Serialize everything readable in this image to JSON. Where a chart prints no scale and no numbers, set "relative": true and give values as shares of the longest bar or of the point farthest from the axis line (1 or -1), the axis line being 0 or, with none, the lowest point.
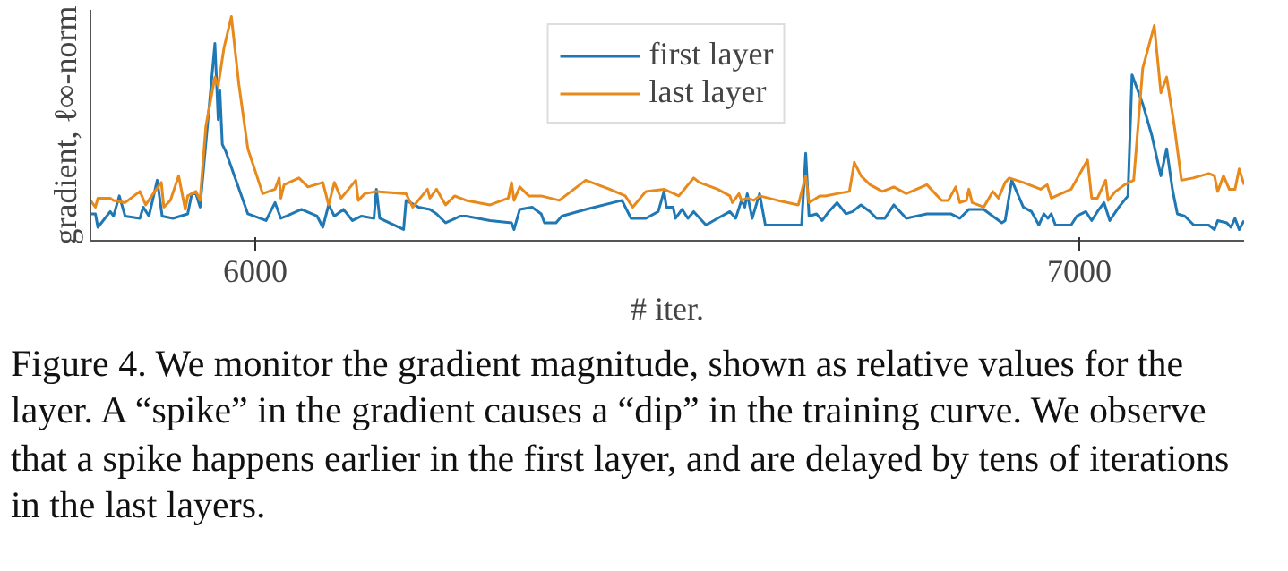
{
  "chart_data": {
    "type": "line",
    "relative": true,
    "ylabel": "gradient, ℓ∞-norm",
    "xlabel": "# iter.",
    "xlim": [
      5800,
      7200
    ],
    "xticks": [
      6000,
      7000
    ],
    "grid": false,
    "legend": "top",
    "annotations": [
      "Figure 4.  We monitor the gradient magnitude, shown as relative values for the layer. A “spike” in the gradient causes a “dip” in the training curve. We observe that a spike happens earlier in the first layer, and are delayed by tens of iterations in the last layers."
    ],
    "series": [
      {
        "name": "first layer",
        "color": "#1f77b4",
        "x": [
          5800,
          5806,
          5809,
          5824,
          5828,
          5835,
          5842,
          5860,
          5864,
          5871,
          5881,
          5887,
          5900,
          5918,
          5923,
          5928,
          5933,
          5951,
          5955,
          5957,
          5960,
          5964,
          5991,
          6013,
          6024,
          6031,
          6038,
          6056,
          6075,
          6082,
          6089,
          6096,
          6107,
          6118,
          6129,
          6144,
          6147,
          6151,
          6180,
          6183,
          6198,
          6212,
          6220,
          6231,
          6249,
          6256,
          6285,
          6311,
          6314,
          6321,
          6336,
          6347,
          6351,
          6365,
          6372,
          6401,
          6445,
          6456,
          6474,
          6489,
          6496,
          6499,
          6507,
          6510,
          6518,
          6525,
          6532,
          6547,
          6561,
          6576,
          6583,
          6590,
          6594,
          6597,
          6603,
          6612,
          6619,
          6648,
          6663,
          6668,
          6672,
          6681,
          6688,
          6696,
          6706,
          6717,
          6725,
          6735,
          6746,
          6754,
          6764,
          6775,
          6790,
          6815,
          6844,
          6855,
          6866,
          6884,
          6895,
          6906,
          6910,
          6918,
          6932,
          6942,
          6951,
          6957,
          6962,
          6966,
          6971,
          6990,
          6997,
          7008,
          7015,
          7022,
          7030,
          7037,
          7048,
          7059,
          7064,
          7077,
          7088,
          7099,
          7106,
          7113,
          7119,
          7128,
          7139,
          7157,
          7164,
          7168,
          7179,
          7184,
          7189,
          7194,
          7200
        ],
        "values": [
          0.12,
          0.12,
          0.06,
          0.13,
          0.11,
          0.2,
          0.11,
          0.1,
          0.15,
          0.11,
          0.27,
          0.11,
          0.1,
          0.12,
          0.21,
          0.21,
          0.15,
          0.88,
          0.54,
          0.67,
          0.43,
          0.4,
          0.12,
          0.09,
          0.17,
          0.1,
          0.11,
          0.14,
          0.11,
          0.06,
          0.16,
          0.11,
          0.14,
          0.09,
          0.11,
          0.1,
          0.23,
          0.1,
          0.05,
          0.18,
          0.15,
          0.14,
          0.12,
          0.08,
          0.11,
          0.11,
          0.09,
          0.08,
          0.05,
          0.14,
          0.15,
          0.12,
          0.08,
          0.08,
          0.11,
          0.14,
          0.18,
          0.1,
          0.1,
          0.13,
          0.22,
          0.15,
          0.15,
          0.1,
          0.14,
          0.1,
          0.13,
          0.07,
          0.1,
          0.13,
          0.1,
          0.18,
          0.15,
          0.21,
          0.1,
          0.21,
          0.07,
          0.07,
          0.07,
          0.39,
          0.11,
          0.12,
          0.09,
          0.13,
          0.17,
          0.12,
          0.13,
          0.16,
          0.13,
          0.1,
          0.1,
          0.16,
          0.1,
          0.12,
          0.12,
          0.1,
          0.14,
          0.14,
          0.11,
          0.08,
          0.09,
          0.27,
          0.15,
          0.13,
          0.07,
          0.12,
          0.1,
          0.12,
          0.07,
          0.07,
          0.11,
          0.13,
          0.09,
          0.13,
          0.17,
          0.09,
          0.15,
          0.2,
          0.74,
          0.61,
          0.47,
          0.29,
          0.41,
          0.23,
          0.12,
          0.11,
          0.07,
          0.07,
          0.05,
          0.09,
          0.08,
          0.06,
          0.1,
          0.05,
          0.09
        ]
      },
      {
        "name": "last layer",
        "color": "#e8891c",
        "x": [
          5800,
          5806,
          5809,
          5824,
          5828,
          5842,
          5860,
          5867,
          5878,
          5886,
          5889,
          5897,
          5907,
          5915,
          5918,
          5928,
          5933,
          5940,
          5951,
          5955,
          5962,
          5971,
          5980,
          5991,
          6009,
          6024,
          6029,
          6031,
          6035,
          6053,
          6064,
          6082,
          6089,
          6096,
          6104,
          6111,
          6122,
          6125,
          6133,
          6147,
          6183,
          6191,
          6209,
          6212,
          6220,
          6231,
          6242,
          6256,
          6285,
          6307,
          6311,
          6314,
          6321,
          6332,
          6347,
          6369,
          6401,
          6430,
          6449,
          6458,
          6474,
          6496,
          6514,
          6532,
          6539,
          6561,
          6576,
          6579,
          6587,
          6590,
          6597,
          6605,
          6612,
          6634,
          6659,
          6668,
          6672,
          6685,
          6692,
          6706,
          6721,
          6727,
          6735,
          6746,
          6761,
          6775,
          6790,
          6815,
          6833,
          6841,
          6850,
          6855,
          6863,
          6866,
          6870,
          6884,
          6895,
          6902,
          6910,
          6915,
          6932,
          6953,
          6961,
          6966,
          6990,
          7010,
          7015,
          7022,
          7032,
          7035,
          7044,
          7055,
          7066,
          7077,
          7091,
          7099,
          7106,
          7115,
          7124,
          7138,
          7157,
          7164,
          7168,
          7175,
          7182,
          7189,
          7194,
          7200
        ],
        "values": [
          0.18,
          0.15,
          0.19,
          0.19,
          0.18,
          0.17,
          0.22,
          0.16,
          0.22,
          0.26,
          0.15,
          0.18,
          0.29,
          0.14,
          0.2,
          0.22,
          0.18,
          0.51,
          0.73,
          0.69,
          0.86,
          1,
          0.7,
          0.41,
          0.21,
          0.23,
          0.28,
          0.19,
          0.25,
          0.28,
          0.24,
          0.26,
          0.16,
          0.26,
          0.19,
          0.22,
          0.27,
          0.18,
          0.21,
          0.22,
          0.21,
          0.15,
          0.23,
          0.19,
          0.23,
          0.16,
          0.2,
          0.18,
          0.16,
          0.19,
          0.26,
          0.18,
          0.24,
          0.2,
          0.2,
          0.18,
          0.27,
          0.23,
          0.2,
          0.15,
          0.22,
          0.23,
          0.2,
          0.28,
          0.26,
          0.23,
          0.2,
          0.17,
          0.21,
          0.18,
          0.19,
          0.18,
          0.2,
          0.18,
          0.16,
          0.29,
          0.17,
          0.2,
          0.2,
          0.21,
          0.22,
          0.35,
          0.29,
          0.25,
          0.22,
          0.24,
          0.21,
          0.25,
          0.18,
          0.18,
          0.24,
          0.17,
          0.18,
          0.23,
          0.17,
          0.15,
          0.22,
          0.19,
          0.26,
          0.28,
          0.26,
          0.23,
          0.25,
          0.19,
          0.23,
          0.36,
          0.19,
          0.19,
          0.27,
          0.18,
          0.22,
          0.25,
          0.27,
          0.77,
          0.96,
          0.66,
          0.73,
          0.52,
          0.27,
          0.28,
          0.3,
          0.29,
          0.22,
          0.29,
          0.23,
          0.23,
          0.32,
          0.25
        ]
      }
    ]
  }
}
